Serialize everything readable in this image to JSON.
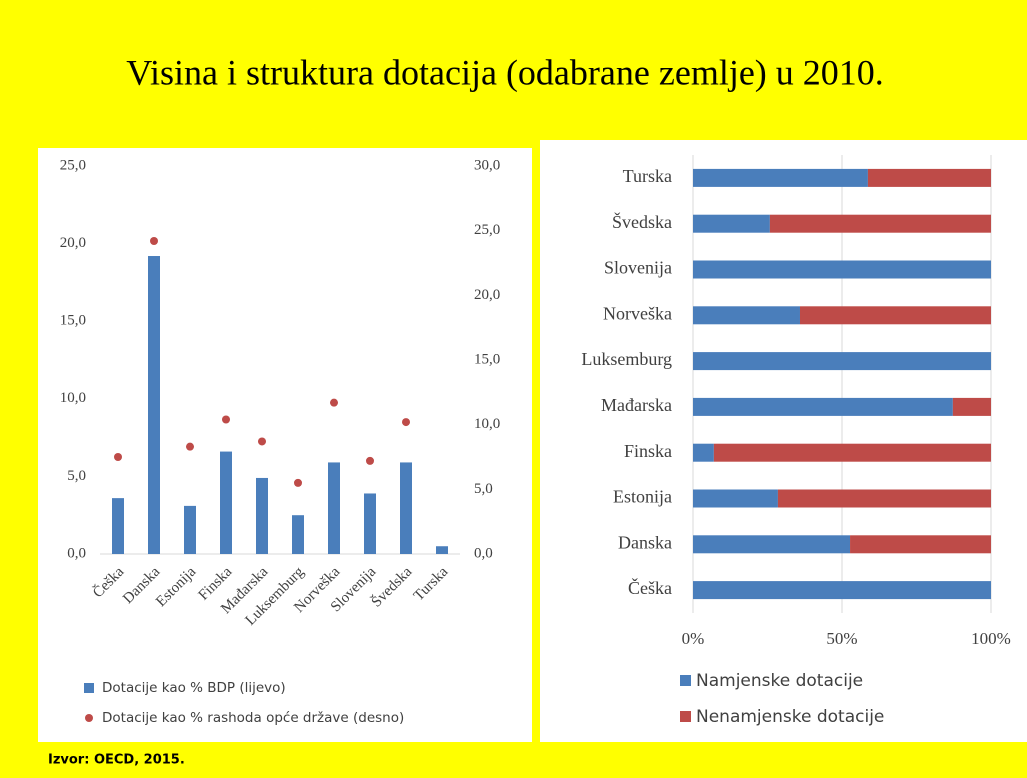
{
  "title": "Visina i struktura dotacija (odabrane zemlje) u 2010.",
  "source": "Izvor: OECD, 2015.",
  "chart_data": [
    {
      "type": "combo",
      "categories": [
        "Češka",
        "Danska",
        "Estonija",
        "Finska",
        "Mađarska",
        "Luksemburg",
        "Norveška",
        "Slovenija",
        "Švedska",
        "Turska"
      ],
      "series": [
        {
          "name": "Dotacije kao % BDP (lijevo)",
          "type": "bar",
          "color": "#4a7ebb",
          "values": [
            3.6,
            19.2,
            3.1,
            6.6,
            4.9,
            2.5,
            5.9,
            3.9,
            5.9,
            0.5
          ]
        },
        {
          "name": "Dotacije kao % rashoda opće države (desno)",
          "type": "scatter",
          "axis": "y2",
          "color": "#be4b48",
          "values": [
            7.5,
            24.2,
            8.3,
            10.4,
            8.7,
            5.5,
            11.7,
            7.2,
            10.2,
            null
          ]
        }
      ],
      "ylim": [
        0,
        25
      ],
      "yticks": [
        {
          "value": 0,
          "label": "0,0"
        },
        {
          "value": 5,
          "label": "5,0"
        },
        {
          "value": 10,
          "label": "10,0"
        },
        {
          "value": 15,
          "label": "15,0"
        },
        {
          "value": 20,
          "label": "20,0"
        },
        {
          "value": 25,
          "label": "25,0"
        }
      ],
      "y2lim": [
        0,
        30
      ],
      "y2ticks": [
        {
          "value": 0,
          "label": "0,0"
        },
        {
          "value": 5,
          "label": "5,0"
        },
        {
          "value": 10,
          "label": "10,0"
        },
        {
          "value": 15,
          "label": "15,0"
        },
        {
          "value": 20,
          "label": "20,0"
        },
        {
          "value": 25,
          "label": "25,0"
        },
        {
          "value": 30,
          "label": "30,0"
        }
      ],
      "grid": false
    },
    {
      "type": "stacked-bar",
      "orientation": "horizontal",
      "categories": [
        "Češka",
        "Danska",
        "Estonija",
        "Finska",
        "Mađarska",
        "Luksemburg",
        "Norveška",
        "Slovenija",
        "Švedska",
        "Turska"
      ],
      "series": [
        {
          "name": "Namjenske dotacije",
          "color": "#4a7ebb",
          "values": [
            100,
            52.7,
            28.5,
            7,
            87.2,
            100,
            35.9,
            100,
            25.8,
            58.7
          ]
        },
        {
          "name": "Nenamjenske dotacije",
          "color": "#be4b48",
          "values": [
            0,
            47.3,
            71.5,
            93,
            12.8,
            0,
            64.1,
            0,
            74.2,
            41.3
          ]
        }
      ],
      "xlim": [
        0,
        100
      ],
      "xticks": [
        {
          "value": 0,
          "label": "0%"
        },
        {
          "value": 50,
          "label": "50%"
        },
        {
          "value": 100,
          "label": "100%"
        }
      ],
      "grid": true
    }
  ]
}
